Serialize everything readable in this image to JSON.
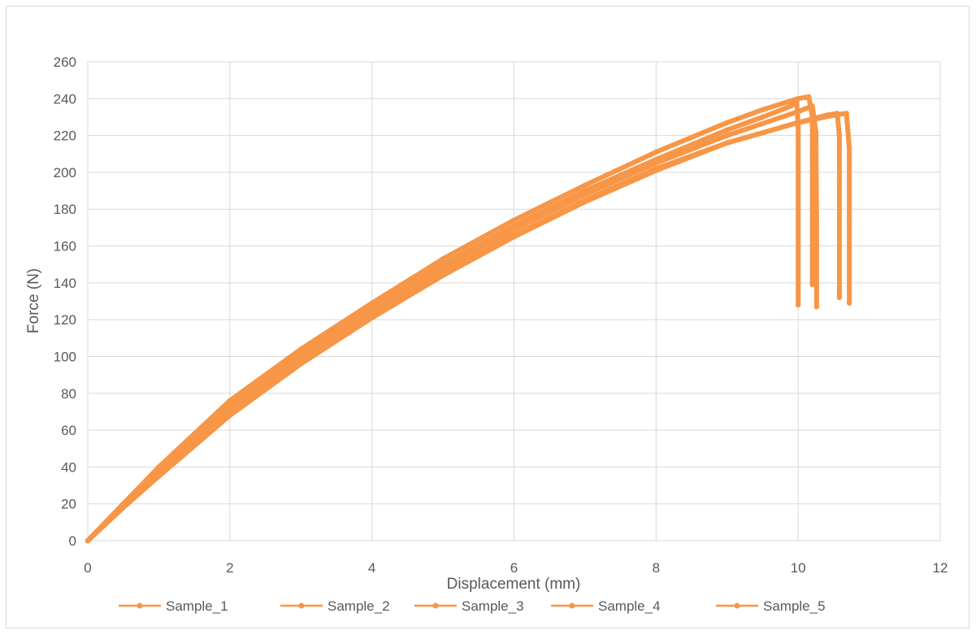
{
  "chart_data": {
    "type": "line",
    "title": "",
    "xlabel": "Displacement (mm)",
    "ylabel": "Force (N)",
    "xlim": [
      0,
      12
    ],
    "ylim": [
      0,
      260
    ],
    "x_ticks": [
      "0",
      "2",
      "4",
      "6",
      "8",
      "10",
      "12"
    ],
    "y_ticks": [
      "0",
      "20",
      "40",
      "60",
      "80",
      "100",
      "120",
      "140",
      "160",
      "180",
      "200",
      "220",
      "240",
      "260"
    ],
    "grid": true,
    "legend_position": "bottom",
    "series_color": "#F79646",
    "series": [
      {
        "name": "Sample_1",
        "x": [
          0,
          0.5,
          1,
          2,
          3,
          4,
          5,
          6,
          7,
          8,
          9,
          9.5,
          9.9,
          9.98,
          10.0,
          10.0,
          10.0
        ],
        "y": [
          0,
          20,
          39,
          73,
          101,
          126,
          150,
          171,
          190,
          207,
          223,
          230,
          236,
          238,
          225,
          205,
          128
        ]
      },
      {
        "name": "Sample_2",
        "x": [
          0,
          0.5,
          1,
          2,
          3,
          4,
          5,
          6,
          7,
          8,
          9,
          9.5,
          10.0,
          10.15,
          10.2,
          10.2,
          10.2
        ],
        "y": [
          0,
          20,
          40,
          76,
          104,
          129,
          153,
          174,
          193,
          211,
          227,
          234,
          240,
          241,
          230,
          208,
          139
        ]
      },
      {
        "name": "Sample_3",
        "x": [
          0,
          0.5,
          1,
          2,
          3,
          4,
          5,
          6,
          7,
          8,
          9,
          10.0,
          10.2,
          10.25,
          10.26,
          10.26
        ],
        "y": [
          0,
          19,
          38,
          71,
          99,
          124,
          148,
          169,
          188,
          205,
          220,
          233,
          236,
          222,
          172,
          127
        ]
      },
      {
        "name": "Sample_4",
        "x": [
          0,
          0.5,
          1,
          2,
          3,
          4,
          5,
          6,
          7,
          8,
          9,
          10,
          10.4,
          10.55,
          10.58,
          10.58,
          10.58
        ],
        "y": [
          0,
          18,
          36,
          69,
          97,
          122,
          145,
          166,
          185,
          202,
          216,
          227,
          231,
          232,
          220,
          197,
          132
        ]
      },
      {
        "name": "Sample_5",
        "x": [
          0,
          0.5,
          1,
          2,
          3,
          4,
          5,
          6,
          7,
          8,
          9,
          10,
          10.5,
          10.68,
          10.72,
          10.72,
          10.72
        ],
        "y": [
          0,
          18,
          35,
          68,
          96,
          121,
          144,
          165,
          184,
          201,
          216,
          227,
          231,
          232,
          213,
          175,
          129
        ]
      }
    ]
  }
}
